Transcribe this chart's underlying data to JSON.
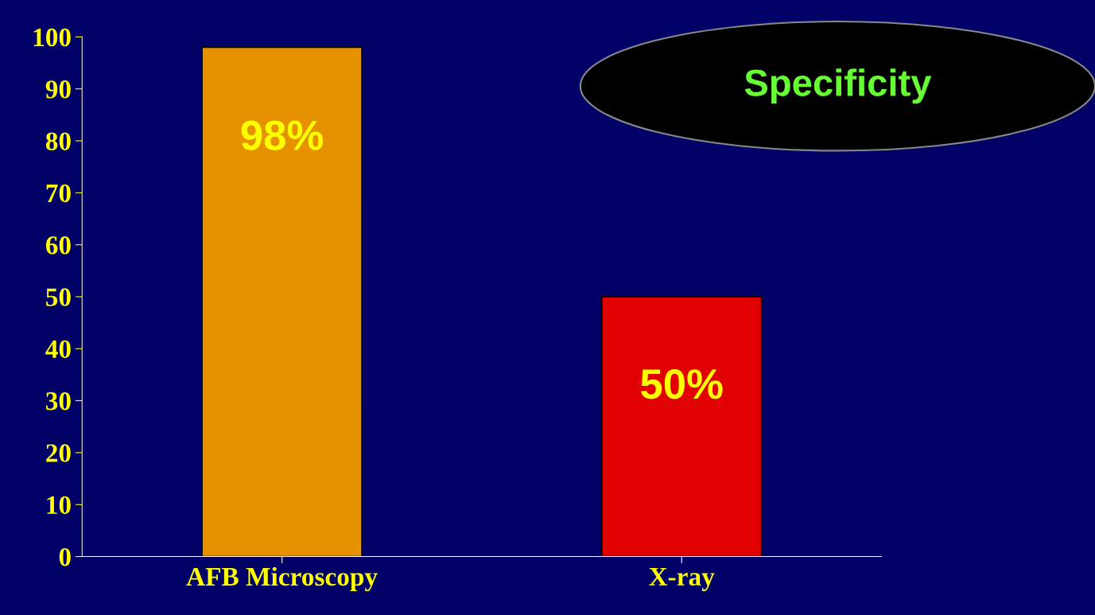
{
  "chart_data": {
    "type": "bar",
    "title": "Specificity",
    "categories": [
      "AFB Microscopy",
      "X-ray"
    ],
    "values": [
      98,
      50
    ],
    "colors": [
      "#e69200",
      "#e00000"
    ],
    "value_labels": [
      "98%",
      "50%"
    ],
    "ylim": [
      0,
      100
    ],
    "yticks": [
      0,
      10,
      20,
      30,
      40,
      50,
      60,
      70,
      80,
      90,
      100
    ],
    "grid": false
  }
}
